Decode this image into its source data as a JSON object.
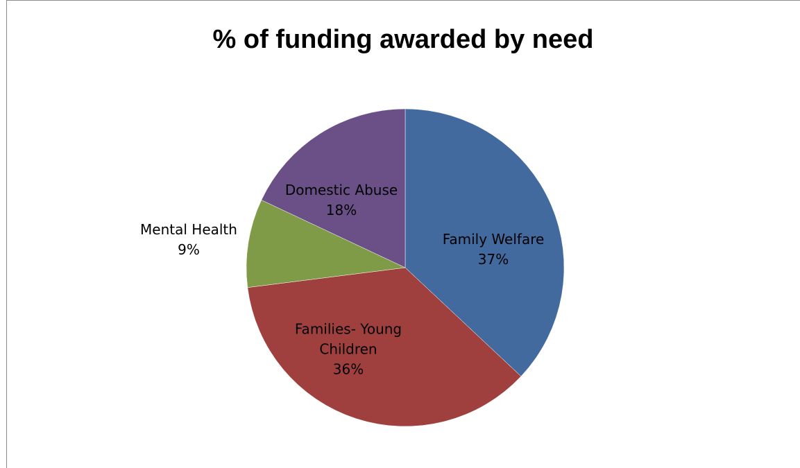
{
  "chart_data": {
    "type": "pie",
    "title": "% of funding awarded by need",
    "slices": [
      {
        "label": "Family Welfare",
        "label_lines": [
          "Family Welfare"
        ],
        "percent_label": "37%",
        "value": 37,
        "color": "#426a9e"
      },
      {
        "label": "Families- Young Children",
        "label_lines": [
          "Families- Young",
          "Children"
        ],
        "percent_label": "36%",
        "value": 36,
        "color": "#a0403e"
      },
      {
        "label": "Mental Health",
        "label_lines": [
          "Mental Health"
        ],
        "percent_label": "9%",
        "value": 9,
        "color": "#7f9b48"
      },
      {
        "label": "Domestic Abuse",
        "label_lines": [
          "Domestic Abuse"
        ],
        "percent_label": "18%",
        "value": 18,
        "color": "#6a5087"
      }
    ],
    "legend": "none",
    "start_angle": "12 o'clock",
    "direction": "clockwise"
  }
}
